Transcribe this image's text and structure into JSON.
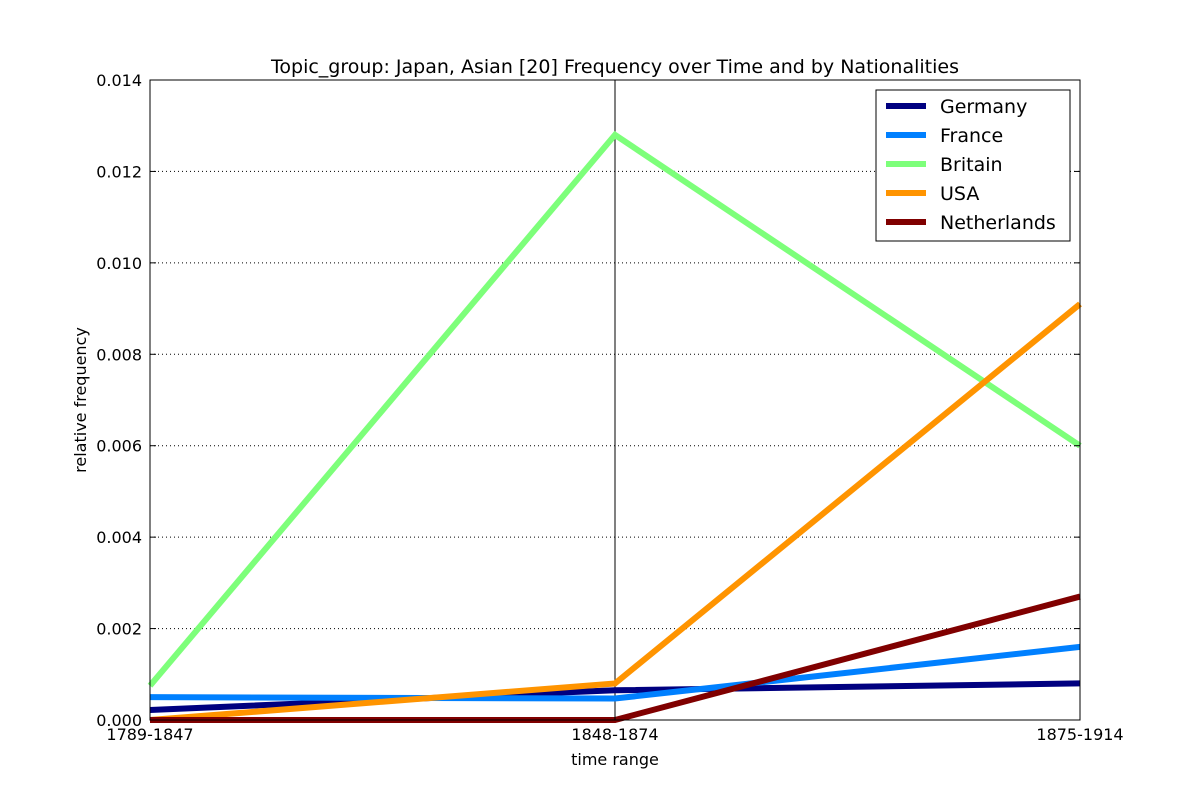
{
  "chart_data": {
    "type": "line",
    "title": "Topic_group: Japan, Asian [20] Frequency over Time and by Nationalities",
    "xlabel": "time range",
    "ylabel": "relative frequency",
    "categories": [
      "1789-1847",
      "1848-1874",
      "1875-1914"
    ],
    "ylim": [
      0,
      0.014
    ],
    "yticks": [
      "0.000",
      "0.002",
      "0.004",
      "0.006",
      "0.008",
      "0.010",
      "0.012",
      "0.014"
    ],
    "grid": "horizontal dotted",
    "legend_position": "top-right",
    "series": [
      {
        "name": "Germany",
        "color": "#000080",
        "values": [
          0.00022,
          0.00065,
          0.0008
        ]
      },
      {
        "name": "France",
        "color": "#0080ff",
        "values": [
          0.0005,
          0.00047,
          0.0016
        ]
      },
      {
        "name": "Britain",
        "color": "#7dff7a",
        "values": [
          0.00075,
          0.0128,
          0.006
        ]
      },
      {
        "name": "USA",
        "color": "#ff9400",
        "values": [
          0.0,
          0.0008,
          0.0091
        ]
      },
      {
        "name": "Netherlands",
        "color": "#800000",
        "values": [
          0.0,
          0.0,
          0.0027
        ]
      }
    ]
  }
}
